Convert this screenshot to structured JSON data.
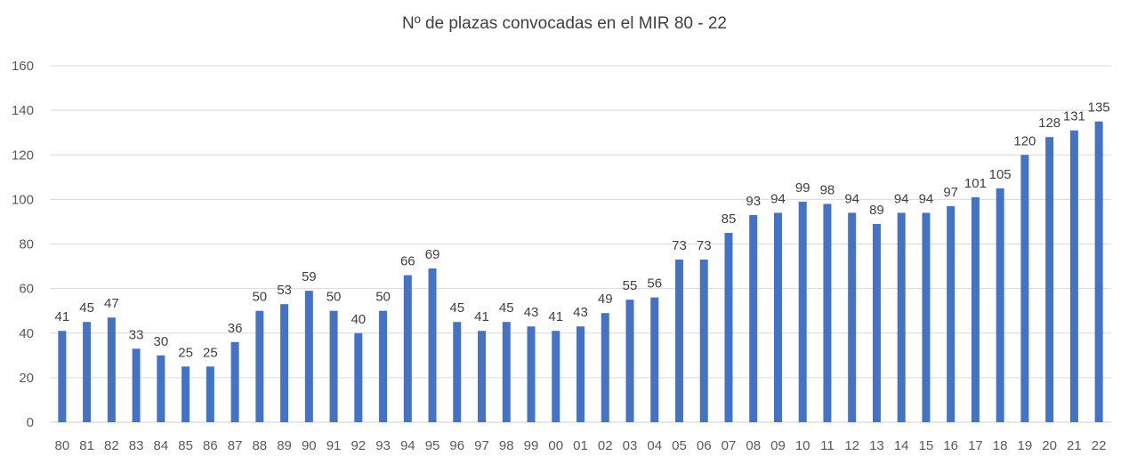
{
  "chart_data": {
    "type": "bar",
    "title": "Nº de plazas convocadas en el MIR 80 - 22",
    "xlabel": "",
    "ylabel": "",
    "ylim": [
      0,
      160
    ],
    "yticks": [
      0,
      20,
      40,
      60,
      80,
      100,
      120,
      140,
      160
    ],
    "grid": true,
    "legend": "none",
    "data_labels": true,
    "bar_color": "#4472C4",
    "categories": [
      "80",
      "81",
      "82",
      "83",
      "84",
      "85",
      "86",
      "87",
      "88",
      "89",
      "90",
      "91",
      "92",
      "93",
      "94",
      "95",
      "96",
      "97",
      "98",
      "99",
      "00",
      "01",
      "02",
      "03",
      "04",
      "05",
      "06",
      "07",
      "08",
      "09",
      "10",
      "11",
      "12",
      "13",
      "14",
      "15",
      "16",
      "17",
      "18",
      "19",
      "20",
      "21",
      "22"
    ],
    "values": [
      41,
      45,
      47,
      33,
      30,
      25,
      25,
      36,
      50,
      53,
      59,
      50,
      40,
      50,
      66,
      69,
      45,
      41,
      45,
      43,
      41,
      43,
      49,
      55,
      56,
      73,
      73,
      85,
      93,
      94,
      99,
      98,
      94,
      89,
      94,
      94,
      97,
      101,
      105,
      120,
      128,
      131,
      135
    ]
  }
}
